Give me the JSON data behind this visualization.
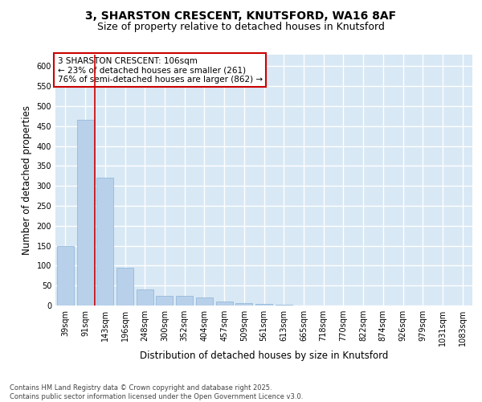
{
  "title_line1": "3, SHARSTON CRESCENT, KNUTSFORD, WA16 8AF",
  "title_line2": "Size of property relative to detached houses in Knutsford",
  "xlabel": "Distribution of detached houses by size in Knutsford",
  "ylabel": "Number of detached properties",
  "categories": [
    "39sqm",
    "91sqm",
    "143sqm",
    "196sqm",
    "248sqm",
    "300sqm",
    "352sqm",
    "404sqm",
    "457sqm",
    "509sqm",
    "561sqm",
    "613sqm",
    "665sqm",
    "718sqm",
    "770sqm",
    "822sqm",
    "874sqm",
    "926sqm",
    "979sqm",
    "1031sqm",
    "1083sqm"
  ],
  "values": [
    150,
    465,
    320,
    95,
    40,
    25,
    25,
    20,
    10,
    7,
    5,
    2,
    1,
    1,
    1,
    1,
    1,
    1,
    1,
    1,
    1
  ],
  "bar_color": "#b8d0ea",
  "bar_edge_color": "#8ab4d8",
  "background_color": "#d8e8f4",
  "grid_color": "#ffffff",
  "vline_x": 1.5,
  "vline_color": "#cc0000",
  "annotation_text": "3 SHARSTON CRESCENT: 106sqm\n← 23% of detached houses are smaller (261)\n76% of semi-detached houses are larger (862) →",
  "annotation_box_color": "#cc0000",
  "ylim": [
    0,
    630
  ],
  "yticks": [
    0,
    50,
    100,
    150,
    200,
    250,
    300,
    350,
    400,
    450,
    500,
    550,
    600
  ],
  "footnote": "Contains HM Land Registry data © Crown copyright and database right 2025.\nContains public sector information licensed under the Open Government Licence v3.0.",
  "title_fontsize": 10,
  "subtitle_fontsize": 9,
  "label_fontsize": 8.5,
  "tick_fontsize": 7,
  "annotation_fontsize": 7.5,
  "footnote_fontsize": 6
}
